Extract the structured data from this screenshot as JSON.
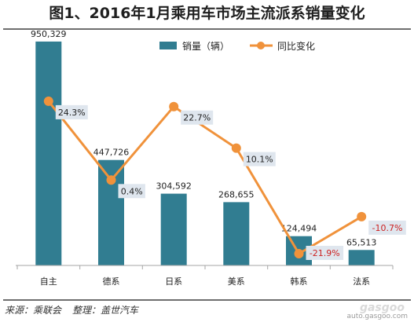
{
  "title": "图1、2016年1月乘用车市场主流派系销量变化",
  "source": {
    "origin": "来源：乘联会",
    "editor": "整理：盖世汽车"
  },
  "watermark": {
    "brand": "gasgoo",
    "sub": "auto.gasgoo.com"
  },
  "colors": {
    "bar": "#317d91",
    "line": "#f0923b",
    "label_box": "#dfe6ee",
    "negative_text": "#cc2020"
  },
  "chart_data": {
    "type": "bar+line",
    "categories": [
      "自主",
      "德系",
      "日系",
      "美系",
      "韩系",
      "法系"
    ],
    "series": [
      {
        "name": "销量（辆）",
        "type": "bar",
        "axis": "left",
        "values": [
          950329,
          447726,
          304592,
          268655,
          124494,
          65513
        ],
        "labels": [
          "950,329",
          "447,726",
          "304,592",
          "268,655",
          "124,494",
          "65,513"
        ]
      },
      {
        "name": "同比变化",
        "type": "line",
        "axis": "right",
        "values": [
          24.3,
          0.4,
          22.7,
          10.1,
          -21.9,
          -10.7
        ],
        "labels": [
          "24.3%",
          "0.4%",
          "22.7%",
          "10.1%",
          "-21.9%",
          "-10.7%"
        ]
      }
    ],
    "ylim_left": [
      0,
      1000000
    ],
    "ylim_right": [
      -25,
      55
    ],
    "grid": false,
    "legend": "top-right"
  }
}
